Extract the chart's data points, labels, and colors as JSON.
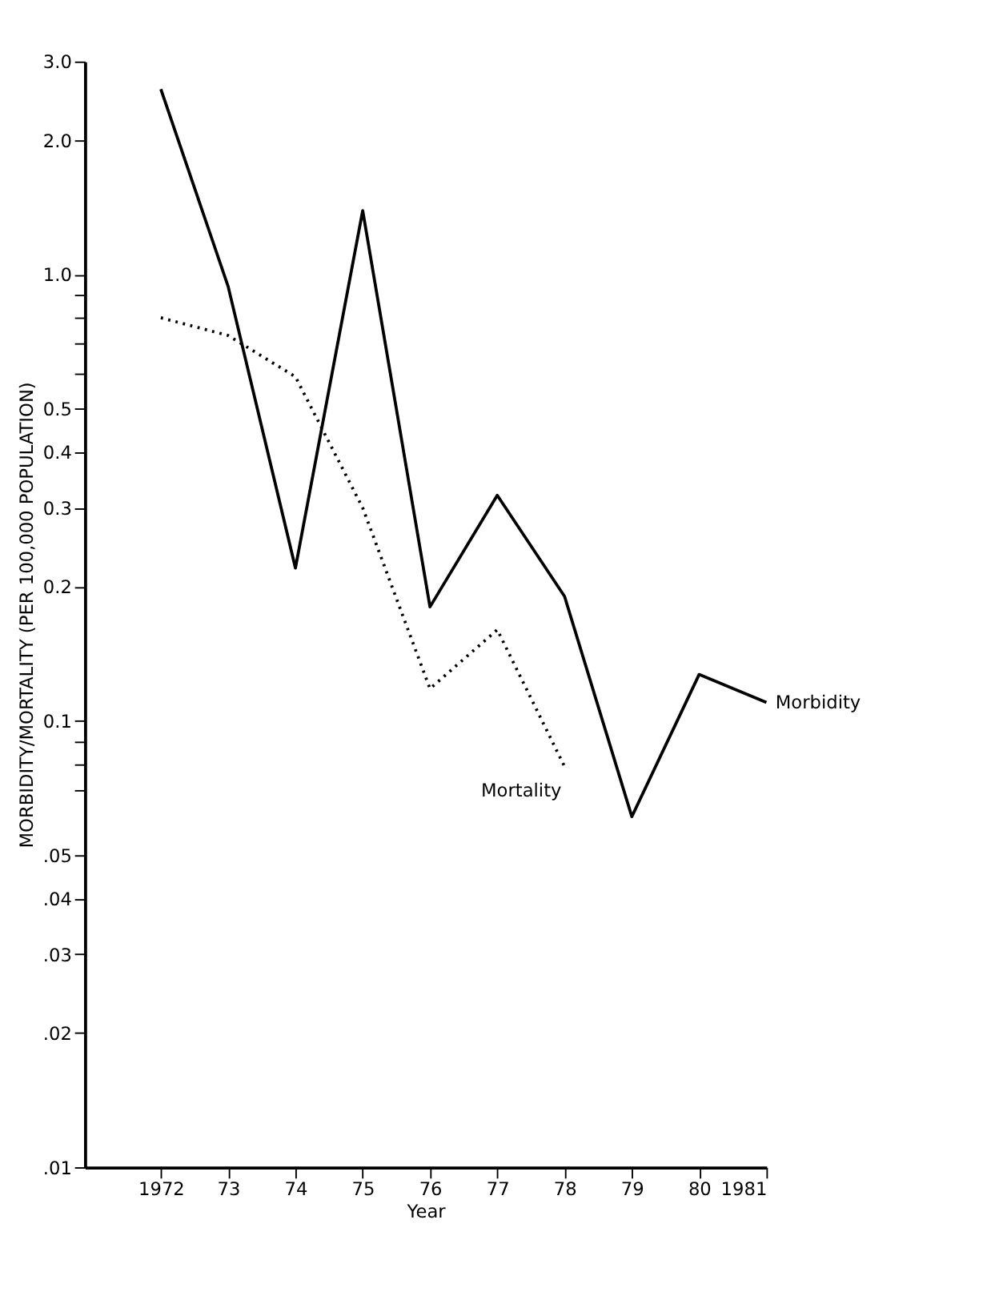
{
  "chart_data": {
    "type": "line",
    "xlabel": "Year",
    "ylabel": "MORBIDITY/MORTALITY (PER 100,000 POPULATION)",
    "x": [
      1972,
      1973,
      1974,
      1975,
      1976,
      1977,
      1978,
      1979,
      1980,
      1981
    ],
    "series": [
      {
        "name": "Morbidity",
        "color": "#000000",
        "line_style": "solid",
        "values": [
          2.6,
          0.94,
          0.22,
          1.39,
          0.18,
          0.32,
          0.19,
          0.061,
          0.127,
          0.11
        ]
      },
      {
        "name": "Mortality",
        "color": "#000000",
        "line_style": "dotted",
        "x": [
          1972,
          1973,
          1974,
          1975,
          1976,
          1977,
          1978
        ],
        "values": [
          0.8,
          0.73,
          0.59,
          0.3,
          0.118,
          0.16,
          0.079
        ]
      }
    ],
    "log": "y",
    "xlim": [
      1970.87,
      1981
    ],
    "xticks": [
      {
        "value": 1972,
        "label": "1972"
      },
      {
        "value": 1973,
        "label": "73"
      },
      {
        "value": 1974,
        "label": "74"
      },
      {
        "value": 1975,
        "label": "75"
      },
      {
        "value": 1976,
        "label": "76"
      },
      {
        "value": 1977,
        "label": "77"
      },
      {
        "value": 1978,
        "label": "78"
      },
      {
        "value": 1979,
        "label": "79"
      },
      {
        "value": 1980,
        "label": "80"
      },
      {
        "value": 1981,
        "label": "1981"
      }
    ],
    "ylim": [
      0.01,
      3.0
    ],
    "yticks": [
      {
        "value": 3.0,
        "label": "3.0"
      },
      {
        "value": 2.0,
        "label": "2.0"
      },
      {
        "value": 1.0,
        "label": "1.0"
      },
      {
        "value": 0.9,
        "label": null
      },
      {
        "value": 0.8,
        "label": null
      },
      {
        "value": 0.7,
        "label": null
      },
      {
        "value": 0.6,
        "label": null
      },
      0.5,
      0.4,
      0.3,
      0.2,
      0.1,
      {
        "value": 0.09,
        "label": null
      },
      {
        "value": 0.08,
        "label": null
      },
      {
        "value": 0.07,
        "label": null
      },
      {
        "value": 0.05,
        "label": ".05"
      },
      {
        "value": 0.04,
        "label": ".04"
      },
      {
        "value": 0.03,
        "label": ".03"
      },
      {
        "value": 0.02,
        "label": ".02"
      },
      {
        "value": 0.01,
        "label": ".01"
      }
    ],
    "grid": false,
    "legend": false,
    "marker": "none"
  }
}
